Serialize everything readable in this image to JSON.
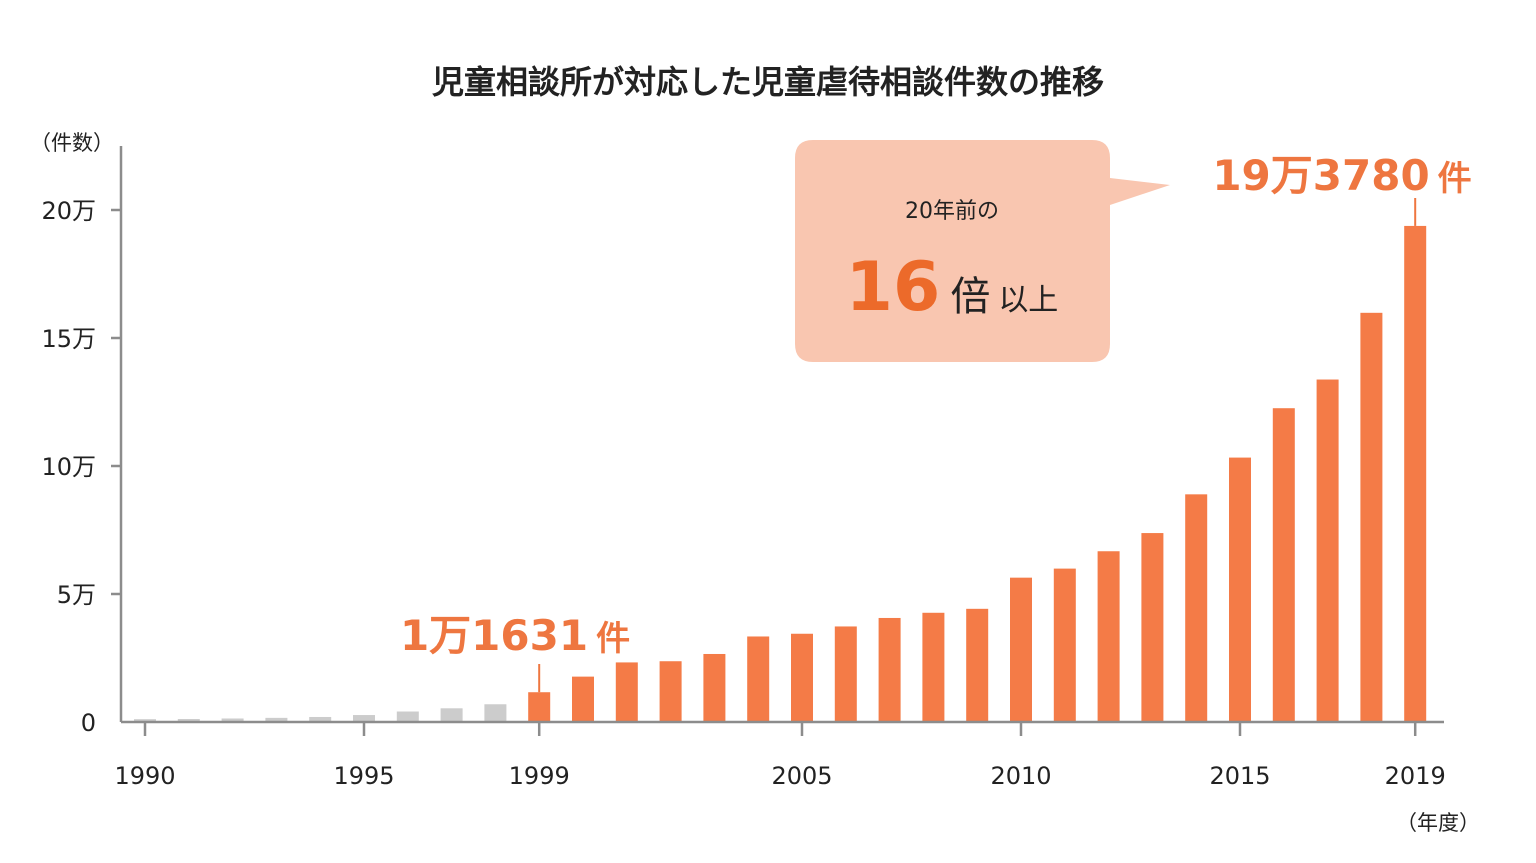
{
  "chart_data": {
    "type": "bar",
    "title": "児童相談所が対応した児童虐待相談件数の推移",
    "ylabel": "（件数）",
    "xlabel": "（年度）",
    "ylim": [
      0,
      225000
    ],
    "y_ticks": [
      {
        "value": 0,
        "label": "0"
      },
      {
        "value": 50000,
        "label": "5万"
      },
      {
        "value": 100000,
        "label": "10万"
      },
      {
        "value": 150000,
        "label": "15万"
      },
      {
        "value": 200000,
        "label": "20万"
      }
    ],
    "x_tick_labels": [
      {
        "year": 1990,
        "label": "1990"
      },
      {
        "year": 1995,
        "label": "1995"
      },
      {
        "year": 1999,
        "label": "1999"
      },
      {
        "year": 2005,
        "label": "2005"
      },
      {
        "year": 2010,
        "label": "2010"
      },
      {
        "year": 2015,
        "label": "2015"
      },
      {
        "year": 2019,
        "label": "2019"
      }
    ],
    "categories": [
      1990,
      1991,
      1992,
      1993,
      1994,
      1995,
      1996,
      1997,
      1998,
      1999,
      2000,
      2001,
      2002,
      2003,
      2004,
      2005,
      2006,
      2007,
      2008,
      2009,
      2010,
      2011,
      2012,
      2013,
      2014,
      2015,
      2016,
      2017,
      2018,
      2019
    ],
    "values": [
      1101,
      1171,
      1372,
      1611,
      1961,
      2722,
      4102,
      5352,
      6932,
      11631,
      17725,
      23274,
      23738,
      26569,
      33408,
      34472,
      37323,
      40639,
      42664,
      44211,
      56384,
      59919,
      66701,
      73802,
      88931,
      103286,
      122575,
      133778,
      159838,
      193780
    ],
    "highlight_from": 1999,
    "colors": {
      "highlight": "#f47b47",
      "muted": "#cccccc",
      "axis": "#8c8c8c",
      "accent": "#ee7640",
      "bubble": "#f9c6b0",
      "bubble_big": "#ec6a2a"
    },
    "annotations": {
      "start": {
        "year": 1999,
        "number": "1万1631",
        "unit": "件"
      },
      "end": {
        "year": 2019,
        "number": "19万3780",
        "unit": "件"
      },
      "bubble": {
        "line1": "20年前の",
        "big": "16",
        "mid": "倍",
        "sub": "以上"
      }
    }
  }
}
